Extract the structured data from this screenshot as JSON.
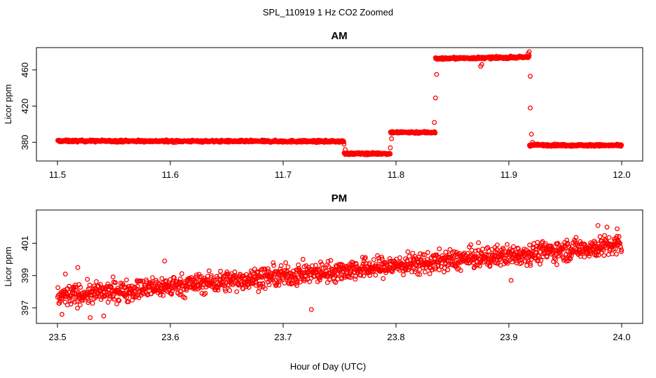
{
  "figure": {
    "suptitle": "SPL_110919  1 Hz CO2 Zoomed",
    "xlabel": "Hour of Day (UTC)",
    "marker_color": "#ff0000"
  },
  "chart_data": [
    {
      "type": "scatter",
      "title": "AM",
      "ylabel": "Licor ppm",
      "xlim": [
        11.5,
        12.0
      ],
      "ylim": [
        364,
        480
      ],
      "xticks": [
        "11.5",
        "11.6",
        "11.7",
        "11.8",
        "11.9",
        "12.0"
      ],
      "xtick_values": [
        11.5,
        11.6,
        11.7,
        11.8,
        11.9,
        12.0
      ],
      "yticks": [
        "380",
        "420",
        "460"
      ],
      "ytick_values": [
        380,
        420,
        460
      ],
      "grid": false,
      "legend": "none",
      "segments": [
        {
          "x_start": 11.5,
          "x_end": 11.754,
          "y_start": 381.5,
          "y_end": 381.0,
          "noise": 0.8
        },
        {
          "x_start": 11.754,
          "x_end": 11.795,
          "y_start": 367.5,
          "y_end": 367.5,
          "noise": 0.8
        },
        {
          "x_start": 11.795,
          "x_end": 11.835,
          "y_start": 391.0,
          "y_end": 391.0,
          "noise": 0.8
        },
        {
          "x_start": 11.835,
          "x_end": 11.918,
          "y_start": 472.5,
          "y_end": 474.0,
          "noise": 0.8
        },
        {
          "x_start": 11.918,
          "x_end": 12.0,
          "y_start": 377.0,
          "y_end": 376.5,
          "noise": 0.8
        }
      ],
      "points": [
        {
          "x": 11.754,
          "y": 378
        },
        {
          "x": 11.755,
          "y": 372
        },
        {
          "x": 11.795,
          "y": 374
        },
        {
          "x": 11.796,
          "y": 384
        },
        {
          "x": 11.834,
          "y": 402
        },
        {
          "x": 11.835,
          "y": 429
        },
        {
          "x": 11.836,
          "y": 455
        },
        {
          "x": 11.875,
          "y": 464
        },
        {
          "x": 11.876,
          "y": 466
        },
        {
          "x": 11.917,
          "y": 478
        },
        {
          "x": 11.918,
          "y": 480
        },
        {
          "x": 11.918,
          "y": 476
        },
        {
          "x": 11.919,
          "y": 453
        },
        {
          "x": 11.919,
          "y": 418
        },
        {
          "x": 11.92,
          "y": 389
        },
        {
          "x": 11.921,
          "y": 380
        }
      ]
    },
    {
      "type": "scatter",
      "title": "PM",
      "ylabel": "Licor ppm",
      "xlim": [
        23.5,
        24.0
      ],
      "ylim": [
        396.3,
        402.8
      ],
      "xticks": [
        "23.5",
        "23.6",
        "23.7",
        "23.8",
        "23.9",
        "24.0"
      ],
      "xtick_values": [
        23.5,
        23.6,
        23.7,
        23.8,
        23.9,
        24.0
      ],
      "yticks": [
        "397",
        "399",
        "401"
      ],
      "ytick_values": [
        397,
        399,
        401
      ],
      "grid": false,
      "legend": "none",
      "segments": [
        {
          "x_start": 23.5,
          "x_end": 24.0,
          "y_start": 397.7,
          "y_end": 400.9,
          "noise": 0.45
        }
      ],
      "points": [
        {
          "x": 23.504,
          "y": 396.6
        },
        {
          "x": 23.507,
          "y": 399.1
        },
        {
          "x": 23.518,
          "y": 399.5
        },
        {
          "x": 23.529,
          "y": 396.4
        },
        {
          "x": 23.541,
          "y": 396.5
        },
        {
          "x": 23.595,
          "y": 399.9
        },
        {
          "x": 23.725,
          "y": 396.9
        },
        {
          "x": 23.902,
          "y": 398.7
        },
        {
          "x": 23.979,
          "y": 402.1
        },
        {
          "x": 23.987,
          "y": 402.0
        },
        {
          "x": 23.996,
          "y": 401.9
        }
      ]
    }
  ]
}
